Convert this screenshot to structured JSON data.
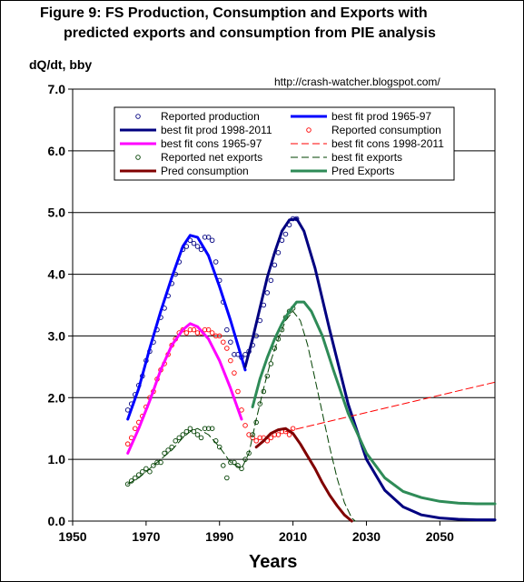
{
  "chart_data": {
    "type": "line",
    "title": "Figure 9: FS Production, Consumption and Exports with",
    "subtitle": "predicted exports and consumption from PIE analysis",
    "ylabel": "dQ/dt, bby",
    "xlabel": "Years",
    "source": "http://crash-watcher.blogspot.com/",
    "xlim": [
      1950,
      2065
    ],
    "ylim": [
      0,
      7
    ],
    "xticks": [
      1950,
      1970,
      1990,
      2010,
      2030,
      2050
    ],
    "xtick_labels": [
      "1950",
      "1970",
      "1990",
      "2010",
      "2030",
      "2050"
    ],
    "yticks": [
      0,
      1,
      2,
      3,
      4,
      5,
      6,
      7
    ],
    "ytick_labels": [
      "0.0",
      "1.0",
      "2.0",
      "3.0",
      "4.0",
      "5.0",
      "6.0",
      "7.0"
    ],
    "grid": "horizontal",
    "legend_position": "top",
    "series": [
      {
        "name": "Reported production",
        "style": "marker",
        "color": "#000080",
        "x": [
          1965,
          1966,
          1967,
          1968,
          1969,
          1970,
          1971,
          1972,
          1973,
          1974,
          1975,
          1976,
          1977,
          1978,
          1979,
          1980,
          1981,
          1982,
          1983,
          1984,
          1985,
          1986,
          1987,
          1988,
          1989,
          1990,
          1991,
          1992,
          1993,
          1994,
          1995,
          1996,
          1997,
          1998,
          1999,
          2000,
          2001,
          2002,
          2003,
          2004,
          2005,
          2006,
          2007,
          2008,
          2009,
          2010,
          2011
        ],
        "y": [
          1.8,
          1.9,
          2.05,
          2.2,
          2.35,
          2.6,
          2.75,
          2.9,
          3.1,
          3.3,
          3.45,
          3.65,
          3.85,
          4.0,
          4.2,
          4.4,
          4.45,
          4.55,
          4.5,
          4.45,
          4.4,
          4.6,
          4.6,
          4.55,
          4.2,
          3.9,
          3.55,
          3.1,
          2.9,
          2.7,
          2.7,
          2.65,
          2.7,
          2.75,
          2.85,
          3.0,
          3.25,
          3.5,
          3.7,
          3.9,
          4.15,
          4.35,
          4.55,
          4.65,
          4.8,
          4.9,
          4.9
        ]
      },
      {
        "name": "best fit prod 1965-97",
        "style": "line",
        "color": "#0000ff",
        "x": [
          1965,
          1968,
          1971,
          1974,
          1977,
          1980,
          1982,
          1984,
          1987,
          1990,
          1993,
          1996,
          1997
        ],
        "y": [
          1.65,
          2.15,
          2.8,
          3.4,
          3.95,
          4.45,
          4.63,
          4.6,
          4.3,
          3.8,
          3.25,
          2.65,
          2.45
        ]
      },
      {
        "name": "best fit prod 1998-2011",
        "style": "line",
        "color": "#000080",
        "x": [
          1997,
          1999,
          2001,
          2003,
          2005,
          2007,
          2009,
          2011,
          2013,
          2016,
          2020,
          2025,
          2030,
          2035,
          2040,
          2045,
          2050,
          2055,
          2060,
          2065
        ],
        "y": [
          2.5,
          2.95,
          3.45,
          3.95,
          4.35,
          4.7,
          4.88,
          4.9,
          4.7,
          4.1,
          3.1,
          1.9,
          1.0,
          0.5,
          0.23,
          0.1,
          0.05,
          0.03,
          0.02,
          0.02
        ]
      },
      {
        "name": "Reported consumption",
        "style": "marker",
        "color": "#ff0000",
        "x": [
          1965,
          1966,
          1967,
          1968,
          1969,
          1970,
          1971,
          1972,
          1973,
          1974,
          1975,
          1976,
          1977,
          1978,
          1979,
          1980,
          1981,
          1982,
          1983,
          1984,
          1985,
          1986,
          1987,
          1988,
          1989,
          1990,
          1991,
          1992,
          1993,
          1994,
          1995,
          1996,
          1997,
          1998,
          1999,
          2000,
          2001,
          2002,
          2003,
          2004,
          2005,
          2006,
          2007,
          2008,
          2009,
          2010
        ],
        "y": [
          1.25,
          1.35,
          1.5,
          1.6,
          1.7,
          1.85,
          2.0,
          2.1,
          2.3,
          2.45,
          2.55,
          2.7,
          2.85,
          2.95,
          3.05,
          3.1,
          3.05,
          3.1,
          3.1,
          3.05,
          3.05,
          3.1,
          3.1,
          3.05,
          3.0,
          3.0,
          2.9,
          2.8,
          2.6,
          2.4,
          2.1,
          1.8,
          1.55,
          1.4,
          1.35,
          1.3,
          1.35,
          1.35,
          1.3,
          1.35,
          1.4,
          1.4,
          1.45,
          1.45,
          1.4,
          1.5
        ]
      },
      {
        "name": "best fit cons 1965-97",
        "style": "line",
        "color": "#ff00ff",
        "x": [
          1965,
          1968,
          1971,
          1974,
          1977,
          1980,
          1982,
          1984,
          1987,
          1990,
          1993,
          1996
        ],
        "y": [
          1.1,
          1.5,
          1.95,
          2.45,
          2.85,
          3.1,
          3.2,
          3.15,
          2.95,
          2.6,
          2.15,
          1.65
        ]
      },
      {
        "name": "best fit cons 1998-2011",
        "style": "dashed",
        "color": "#ff0000",
        "x": [
          2008,
          2065
        ],
        "y": [
          1.45,
          2.25
        ]
      },
      {
        "name": "Reported net exports",
        "style": "marker",
        "color": "#004000",
        "x": [
          1965,
          1966,
          1967,
          1968,
          1969,
          1970,
          1971,
          1972,
          1973,
          1974,
          1975,
          1976,
          1977,
          1978,
          1979,
          1980,
          1981,
          1982,
          1983,
          1984,
          1985,
          1986,
          1987,
          1988,
          1989,
          1990,
          1991,
          1992,
          1993,
          1994,
          1995,
          1996,
          1997,
          1998,
          1999,
          2000,
          2001,
          2002,
          2003,
          2004,
          2005,
          2006,
          2007,
          2008,
          2009,
          2010
        ],
        "y": [
          0.6,
          0.65,
          0.7,
          0.75,
          0.8,
          0.85,
          0.8,
          0.9,
          0.95,
          0.95,
          1.1,
          1.15,
          1.2,
          1.3,
          1.35,
          1.4,
          1.45,
          1.5,
          1.45,
          1.4,
          1.35,
          1.5,
          1.5,
          1.5,
          1.3,
          1.2,
          0.9,
          0.7,
          0.95,
          0.95,
          0.9,
          0.85,
          1.0,
          1.1,
          1.4,
          1.6,
          1.9,
          2.1,
          2.35,
          2.55,
          2.8,
          2.95,
          3.1,
          3.3,
          3.4,
          3.45
        ]
      },
      {
        "name": "best fit exports",
        "style": "dashed",
        "color": "#004000",
        "x": [
          1965,
          1968,
          1971,
          1974,
          1977,
          1980,
          1982,
          1984,
          1987,
          1990,
          1993,
          1996,
          1998,
          2000,
          2002,
          2004,
          2006,
          2008,
          2010,
          2012,
          2014,
          2016,
          2018,
          2020,
          2022,
          2024,
          2026,
          2027
        ],
        "y": [
          0.6,
          0.7,
          0.85,
          1.0,
          1.15,
          1.35,
          1.45,
          1.5,
          1.4,
          1.2,
          0.95,
          0.85,
          1.1,
          1.65,
          2.15,
          2.6,
          2.95,
          3.25,
          3.4,
          3.25,
          2.85,
          2.3,
          1.75,
          1.2,
          0.7,
          0.3,
          0.05,
          0.0
        ]
      },
      {
        "name": "Pred consumption",
        "style": "line",
        "color": "#800000",
        "x": [
          2000,
          2002,
          2004,
          2006,
          2008,
          2010,
          2012,
          2014,
          2016,
          2018,
          2020,
          2022,
          2024,
          2026
        ],
        "y": [
          1.2,
          1.3,
          1.42,
          1.48,
          1.5,
          1.42,
          1.25,
          1.05,
          0.85,
          0.62,
          0.42,
          0.25,
          0.1,
          0.0
        ]
      },
      {
        "name": "Pred Exports",
        "style": "line",
        "color": "#2e8b57",
        "x": [
          1999,
          2001,
          2003,
          2005,
          2007,
          2009,
          2011,
          2013,
          2015,
          2018,
          2021,
          2025,
          2030,
          2035,
          2040,
          2045,
          2050,
          2055,
          2060,
          2065
        ],
        "y": [
          1.85,
          2.3,
          2.65,
          2.95,
          3.2,
          3.4,
          3.55,
          3.55,
          3.4,
          3.0,
          2.45,
          1.75,
          1.1,
          0.7,
          0.48,
          0.38,
          0.32,
          0.29,
          0.28,
          0.28
        ]
      }
    ]
  }
}
